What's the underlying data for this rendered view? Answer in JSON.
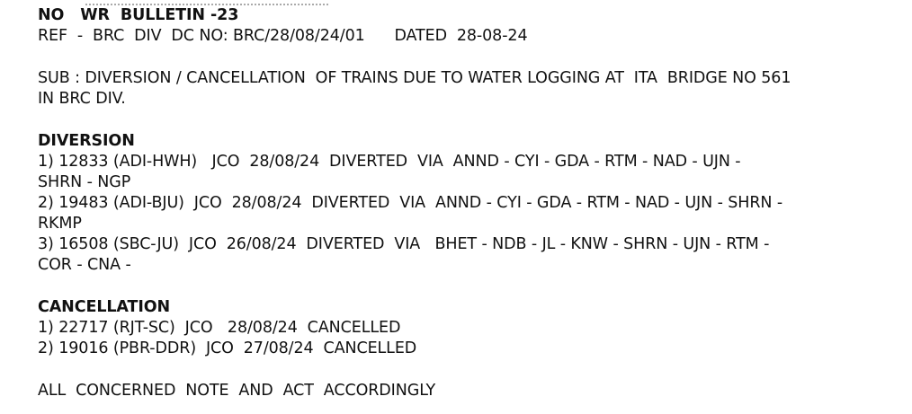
{
  "bulletin": {
    "title": "NO   WR  BULLETIN -23",
    "ref": "REF  -  BRC  DIV  DC NO: BRC/28/08/24/01      DATED  28-08-24",
    "subject_line1": "SUB : DIVERSION / CANCELLATION  OF TRAINS DUE TO WATER LOGGING AT  ITA  BRIDGE NO 561",
    "subject_line2": "IN BRC DIV."
  },
  "diversion": {
    "heading": "DIVERSION",
    "lines": [
      "1) 12833 (ADI-HWH)   JCO  28/08/24  DIVERTED  VIA  ANND - CYI - GDA - RTM - NAD - UJN -",
      "SHRN - NGP",
      "2) 19483 (ADI-BJU)  JCO  28/08/24  DIVERTED  VIA  ANND - CYI - GDA - RTM - NAD - UJN - SHRN -",
      "RKMP",
      "3) 16508 (SBC-JU)  JCO  26/08/24  DIVERTED  VIA   BHET - NDB - JL - KNW - SHRN - UJN - RTM -",
      "COR - CNA -"
    ]
  },
  "cancellation": {
    "heading": "CANCELLATION",
    "lines": [
      "1) 22717 (RJT-SC)  JCO   28/08/24  CANCELLED",
      "2) 19016 (PBR-DDR)  JCO  27/08/24  CANCELLED"
    ]
  },
  "footer": "ALL  CONCERNED  NOTE  AND  ACT  ACCORDINGLY"
}
